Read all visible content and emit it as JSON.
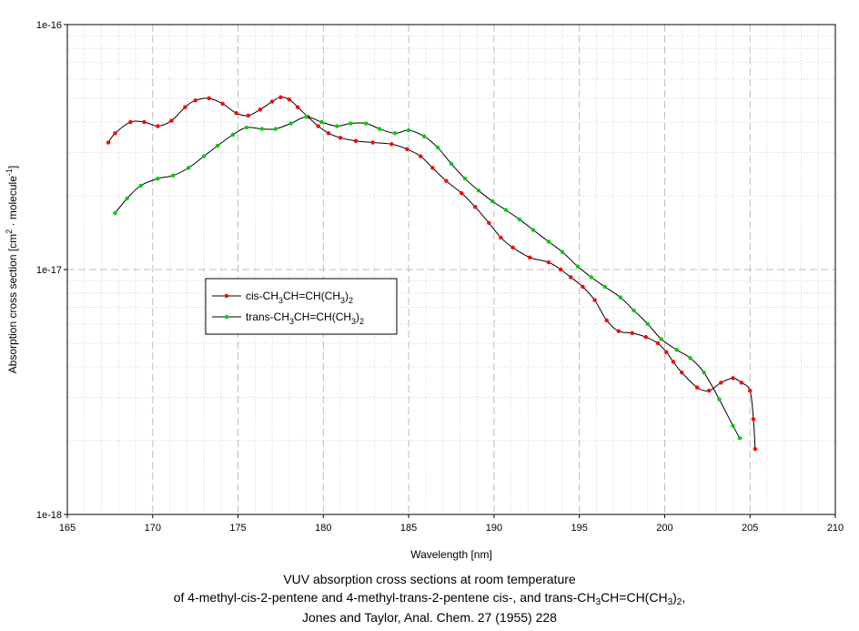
{
  "chart_data": {
    "type": "line",
    "xlabel": "Wavelength [nm]",
    "ylabel": "Absorption cross section [cm2 · molecule-1]",
    "ylabel_parts": {
      "pre": "Absorption cross section [cm",
      "sup1": "2",
      "mid": " · molecule",
      "sup2": "-1",
      "post": "]"
    },
    "xlim": [
      165,
      210
    ],
    "ylim": [
      1e-18,
      1e-16
    ],
    "y_scale": "log",
    "x_ticks": [
      165,
      170,
      175,
      180,
      185,
      190,
      195,
      200,
      205,
      210
    ],
    "x_tick_labels": [
      "165",
      "170",
      "175",
      "180",
      "185",
      "190",
      "195",
      "200",
      "205",
      "210"
    ],
    "y_tick_labels": [
      "1e-18",
      "1e-17",
      "1e-16"
    ],
    "grid": true,
    "legend_position": "center-left",
    "series": [
      {
        "name": "cis-CH3CH=CH(CH3)2",
        "name_parts": [
          "cis-CH",
          "3",
          "CH=CH(CH",
          "3",
          ")",
          "2"
        ],
        "color": "#ff0000",
        "line_color": "#000000",
        "x": [
          167.4,
          167.8,
          168.7,
          169.5,
          170.3,
          171.1,
          171.9,
          172.5,
          173.3,
          174.1,
          174.9,
          175.6,
          176.3,
          177.0,
          177.5,
          178.0,
          178.5,
          179.1,
          179.7,
          180.3,
          181.0,
          181.9,
          182.9,
          184.0,
          184.9,
          185.7,
          186.4,
          187.2,
          188.1,
          188.9,
          189.7,
          190.4,
          191.1,
          192.1,
          193.2,
          193.9,
          194.5,
          195.2,
          195.9,
          196.6,
          197.3,
          198.1,
          198.9,
          199.6,
          200.1,
          200.5,
          201.0,
          201.9,
          202.6,
          203.3,
          204.0,
          204.5,
          205.0,
          205.2,
          205.3
        ],
        "values": [
          3.3e-17,
          3.6e-17,
          4e-17,
          4e-17,
          3.85e-17,
          4.05e-17,
          4.6e-17,
          4.9e-17,
          5e-17,
          4.75e-17,
          4.35e-17,
          4.25e-17,
          4.5e-17,
          4.85e-17,
          5.05e-17,
          4.95e-17,
          4.6e-17,
          4.2e-17,
          3.85e-17,
          3.6e-17,
          3.45e-17,
          3.35e-17,
          3.3e-17,
          3.25e-17,
          3.1e-17,
          2.9e-17,
          2.6e-17,
          2.3e-17,
          2.05e-17,
          1.8e-17,
          1.55e-17,
          1.35e-17,
          1.23e-17,
          1.12e-17,
          1.07e-17,
          1e-17,
          9.3e-18,
          8.5e-18,
          7.5e-18,
          6.2e-18,
          5.6e-18,
          5.5e-18,
          5.3e-18,
          5e-18,
          4.6e-18,
          4.2e-18,
          3.8e-18,
          3.3e-18,
          3.2e-18,
          3.45e-18,
          3.6e-18,
          3.45e-18,
          3.2e-18,
          2.45e-18,
          1.85e-18
        ]
      },
      {
        "name": "trans-CH3CH=CH(CH3)2",
        "name_parts": [
          "trans-CH",
          "3",
          "CH=CH(CH",
          "3",
          ")",
          "2"
        ],
        "color": "#00cc00",
        "line_color": "#000000",
        "x": [
          167.8,
          168.5,
          169.3,
          170.3,
          171.2,
          172.1,
          173.0,
          173.8,
          174.7,
          175.5,
          176.4,
          177.2,
          178.1,
          179.0,
          179.9,
          180.8,
          181.6,
          182.5,
          183.3,
          184.2,
          185.0,
          185.9,
          186.7,
          187.5,
          188.3,
          189.1,
          189.9,
          190.7,
          191.5,
          192.3,
          193.2,
          194.0,
          194.9,
          195.7,
          196.5,
          197.4,
          198.2,
          199.0,
          199.8,
          200.7,
          201.5,
          202.3,
          203.2,
          204.0,
          204.4
        ],
        "values": [
          1.7e-17,
          1.95e-17,
          2.2e-17,
          2.35e-17,
          2.42e-17,
          2.6e-17,
          2.9e-17,
          3.2e-17,
          3.55e-17,
          3.8e-17,
          3.75e-17,
          3.75e-17,
          3.95e-17,
          4.2e-17,
          4e-17,
          3.85e-17,
          3.95e-17,
          3.95e-17,
          3.75e-17,
          3.6e-17,
          3.7e-17,
          3.5e-17,
          3.15e-17,
          2.7e-17,
          2.35e-17,
          2.1e-17,
          1.9e-17,
          1.75e-17,
          1.6e-17,
          1.45e-17,
          1.3e-17,
          1.18e-17,
          1.03e-17,
          9.3e-18,
          8.5e-18,
          7.7e-18,
          6.8e-18,
          6e-18,
          5.2e-18,
          4.7e-18,
          4.35e-18,
          3.8e-18,
          2.95e-18,
          2.3e-18,
          2.05e-18
        ]
      }
    ]
  },
  "caption": {
    "line1": "VUV absorption cross sections at room temperature",
    "line2_parts": [
      "of 4-methyl-cis-2-pentene and 4-methyl-trans-2-pentene cis-, and trans-CH",
      "3",
      "CH=CH(CH",
      "3",
      ")",
      "2",
      ","
    ],
    "line3": "Jones and Taylor, Anal. Chem. 27 (1955) 228"
  }
}
